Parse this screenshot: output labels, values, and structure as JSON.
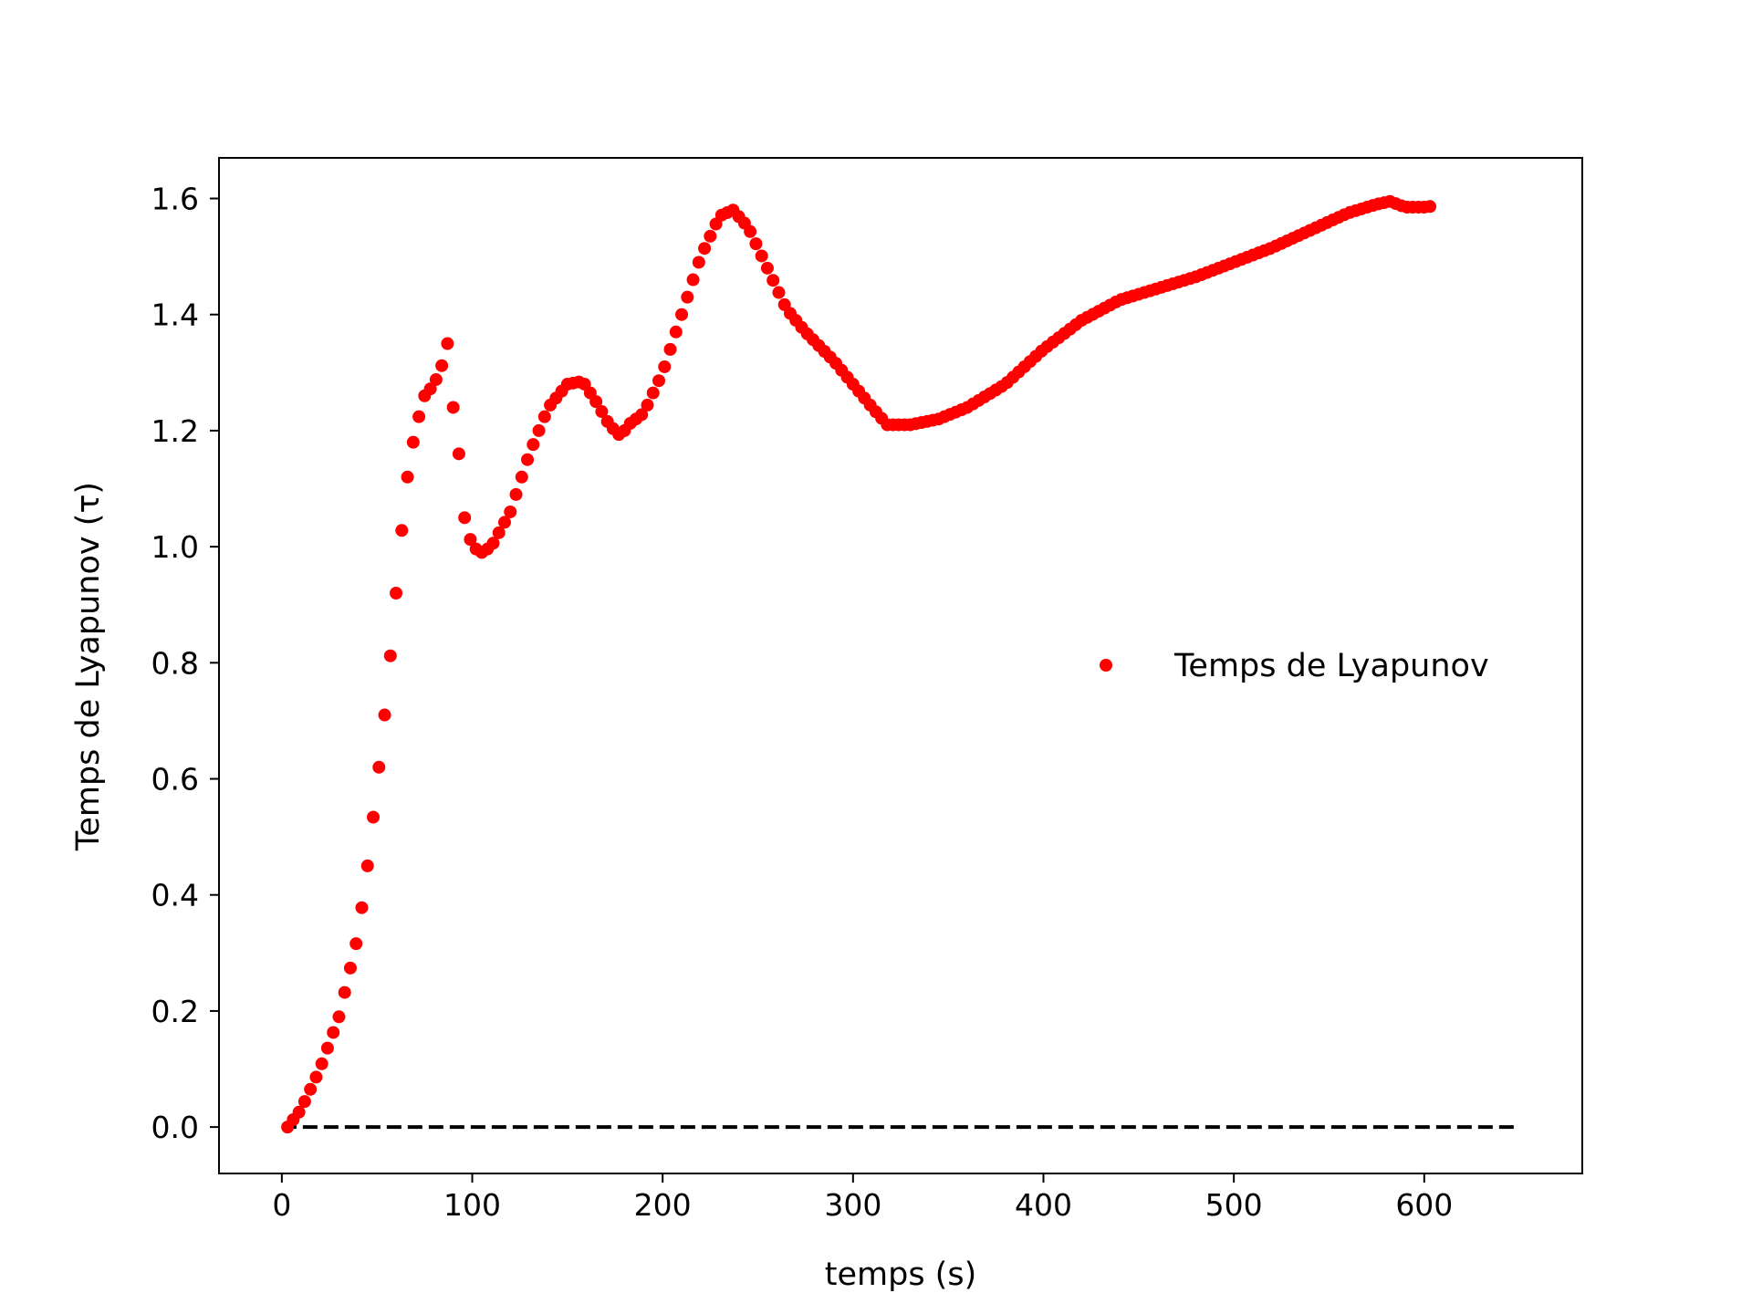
{
  "chart_data": {
    "type": "scatter",
    "title": "",
    "xlabel": "temps (s)",
    "ylabel": "Temps de Lyapunov (τ)",
    "xlim": [
      -33,
      683
    ],
    "ylim": [
      -0.08,
      1.67
    ],
    "xticks": [
      0,
      100,
      200,
      300,
      400,
      500,
      600
    ],
    "xtick_labels": [
      "0",
      "100",
      "200",
      "300",
      "400",
      "500",
      "600"
    ],
    "yticks": [
      0.0,
      0.2,
      0.4,
      0.6,
      0.8,
      1.0,
      1.2,
      1.4,
      1.6
    ],
    "ytick_labels": [
      "0.0",
      "0.2",
      "0.4",
      "0.6",
      "0.8",
      "1.0",
      "1.2",
      "1.4",
      "1.6"
    ],
    "grid": false,
    "legend_position": "center-right",
    "series": [
      {
        "name": "Temps de Lyapunov",
        "marker": "dot",
        "color": "#ff0000",
        "sampling_step": 3,
        "anchors": [
          [
            3,
            0.0
          ],
          [
            10,
            0.03
          ],
          [
            20,
            0.1
          ],
          [
            30,
            0.19
          ],
          [
            40,
            0.33
          ],
          [
            45,
            0.45
          ],
          [
            50,
            0.59
          ],
          [
            55,
            0.74
          ],
          [
            60,
            0.92
          ],
          [
            65,
            1.1
          ],
          [
            70,
            1.2
          ],
          [
            75,
            1.26
          ],
          [
            80,
            1.28
          ],
          [
            85,
            1.32
          ],
          [
            87,
            1.35
          ],
          [
            90,
            1.24
          ],
          [
            93,
            1.16
          ],
          [
            96,
            1.05
          ],
          [
            100,
            1.0
          ],
          [
            105,
            0.99
          ],
          [
            110,
            1.0
          ],
          [
            120,
            1.06
          ],
          [
            130,
            1.16
          ],
          [
            140,
            1.24
          ],
          [
            150,
            1.28
          ],
          [
            158,
            1.285
          ],
          [
            165,
            1.25
          ],
          [
            172,
            1.21
          ],
          [
            178,
            1.19
          ],
          [
            182,
            1.21
          ],
          [
            190,
            1.23
          ],
          [
            200,
            1.3
          ],
          [
            210,
            1.4
          ],
          [
            220,
            1.5
          ],
          [
            230,
            1.57
          ],
          [
            237,
            1.58
          ],
          [
            245,
            1.55
          ],
          [
            255,
            1.48
          ],
          [
            265,
            1.41
          ],
          [
            275,
            1.37
          ],
          [
            290,
            1.32
          ],
          [
            300,
            1.28
          ],
          [
            310,
            1.24
          ],
          [
            318,
            1.21
          ],
          [
            330,
            1.21
          ],
          [
            345,
            1.22
          ],
          [
            360,
            1.24
          ],
          [
            380,
            1.28
          ],
          [
            400,
            1.34
          ],
          [
            420,
            1.39
          ],
          [
            440,
            1.425
          ],
          [
            460,
            1.445
          ],
          [
            480,
            1.465
          ],
          [
            500,
            1.49
          ],
          [
            520,
            1.515
          ],
          [
            540,
            1.545
          ],
          [
            560,
            1.575
          ],
          [
            575,
            1.59
          ],
          [
            582,
            1.595
          ],
          [
            590,
            1.585
          ],
          [
            600,
            1.585
          ],
          [
            605,
            1.587
          ]
        ]
      },
      {
        "name": "",
        "style": "dashed",
        "color": "#000000",
        "x": [
          0,
          650
        ],
        "y": [
          0.0,
          0.0
        ]
      }
    ]
  }
}
